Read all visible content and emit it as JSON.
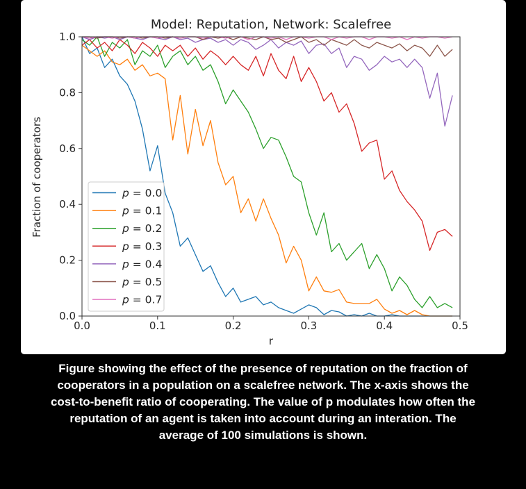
{
  "caption": {
    "lines": [
      "Figure showing the effect of the presence of reputation on the fraction of",
      "cooperators in a population on a scalefree network. The x-axis shows the",
      "cost-to-benefit ratio of cooperating. The value of p modulates how often the",
      "reputation of an agent is taken into account during an interation. The",
      "average of 100 simulations is shown."
    ]
  },
  "chart_data": {
    "type": "line",
    "title": "Model: Reputation, Network: Scalefree",
    "xlabel": "r",
    "ylabel": "Fraction of cooperators",
    "xlim": [
      0,
      0.5
    ],
    "ylim": [
      0,
      1
    ],
    "xticks": [
      0.0,
      0.1,
      0.2,
      0.3,
      0.4,
      0.5
    ],
    "yticks": [
      0.0,
      0.2,
      0.4,
      0.6,
      0.8,
      1.0
    ],
    "grid": false,
    "legend_position": "center-left",
    "x": [
      0.0,
      0.01,
      0.02,
      0.03,
      0.04,
      0.05,
      0.06,
      0.07,
      0.08,
      0.09,
      0.1,
      0.11,
      0.12,
      0.13,
      0.14,
      0.15,
      0.16,
      0.17,
      0.18,
      0.19,
      0.2,
      0.21,
      0.22,
      0.23,
      0.24,
      0.25,
      0.26,
      0.27,
      0.28,
      0.29,
      0.3,
      0.31,
      0.32,
      0.33,
      0.34,
      0.35,
      0.36,
      0.37,
      0.38,
      0.39,
      0.4,
      0.41,
      0.42,
      0.43,
      0.44,
      0.45,
      0.46,
      0.47,
      0.48,
      0.49
    ],
    "series": [
      {
        "name": "p = 0.0",
        "color": "#1f77b4",
        "values": [
          1.0,
          0.94,
          0.96,
          0.89,
          0.92,
          0.86,
          0.83,
          0.77,
          0.67,
          0.52,
          0.61,
          0.44,
          0.37,
          0.25,
          0.28,
          0.22,
          0.16,
          0.18,
          0.12,
          0.07,
          0.1,
          0.05,
          0.06,
          0.07,
          0.04,
          0.05,
          0.03,
          0.02,
          0.01,
          0.025,
          0.04,
          0.03,
          0.005,
          0.02,
          0.015,
          0.0,
          0.005,
          0.0,
          0.01,
          0.0,
          0.0,
          0.005,
          0.0,
          0.0,
          0.0,
          0.0,
          0.0,
          0.0,
          0.0,
          0.0
        ]
      },
      {
        "name": "p = 0.1",
        "color": "#ff7f0e",
        "values": [
          0.97,
          0.95,
          0.93,
          0.95,
          0.91,
          0.9,
          0.92,
          0.88,
          0.9,
          0.86,
          0.87,
          0.85,
          0.63,
          0.79,
          0.58,
          0.74,
          0.61,
          0.7,
          0.55,
          0.47,
          0.5,
          0.37,
          0.42,
          0.34,
          0.42,
          0.35,
          0.29,
          0.19,
          0.25,
          0.2,
          0.09,
          0.14,
          0.09,
          0.085,
          0.095,
          0.05,
          0.045,
          0.045,
          0.045,
          0.06,
          0.025,
          0.01,
          0.02,
          0.005,
          0.02,
          0.005,
          0.0,
          0.0,
          0.0,
          0.0
        ]
      },
      {
        "name": "p = 0.2",
        "color": "#2ca02c",
        "values": [
          0.99,
          0.97,
          1.0,
          0.93,
          0.98,
          0.96,
          0.99,
          0.9,
          0.95,
          0.93,
          0.97,
          0.89,
          0.93,
          0.95,
          0.9,
          0.93,
          0.88,
          0.9,
          0.84,
          0.76,
          0.81,
          0.77,
          0.73,
          0.67,
          0.6,
          0.64,
          0.63,
          0.57,
          0.5,
          0.48,
          0.37,
          0.29,
          0.37,
          0.23,
          0.26,
          0.2,
          0.23,
          0.26,
          0.17,
          0.22,
          0.17,
          0.09,
          0.14,
          0.11,
          0.06,
          0.03,
          0.07,
          0.03,
          0.045,
          0.03
        ]
      },
      {
        "name": "p = 0.3",
        "color": "#d62728",
        "values": [
          0.97,
          0.99,
          0.96,
          0.98,
          0.95,
          0.99,
          0.97,
          0.94,
          0.98,
          0.96,
          0.93,
          0.97,
          0.95,
          0.97,
          0.93,
          0.96,
          0.92,
          0.95,
          0.93,
          0.9,
          0.93,
          0.9,
          0.88,
          0.93,
          0.86,
          0.94,
          0.88,
          0.85,
          0.93,
          0.84,
          0.89,
          0.84,
          0.77,
          0.8,
          0.73,
          0.76,
          0.69,
          0.59,
          0.62,
          0.63,
          0.49,
          0.52,
          0.45,
          0.41,
          0.38,
          0.34,
          0.235,
          0.3,
          0.31,
          0.285
        ]
      },
      {
        "name": "p = 0.4",
        "color": "#9467bd",
        "values": [
          1.0,
          0.99,
          1.0,
          0.995,
          1.0,
          0.99,
          1.0,
          0.995,
          0.99,
          1.0,
          0.995,
          0.99,
          1.0,
          0.99,
          0.995,
          0.98,
          0.99,
          0.995,
          0.98,
          0.99,
          0.97,
          0.99,
          0.98,
          0.955,
          0.97,
          0.99,
          0.96,
          0.98,
          0.97,
          0.985,
          0.94,
          0.97,
          0.975,
          0.94,
          0.96,
          0.89,
          0.93,
          0.92,
          0.88,
          0.9,
          0.93,
          0.91,
          0.92,
          0.89,
          0.92,
          0.89,
          0.78,
          0.87,
          0.68,
          0.79
        ]
      },
      {
        "name": "p = 0.5",
        "color": "#8c564b",
        "values": [
          1.0,
          1.0,
          0.995,
          1.0,
          1.0,
          0.995,
          1.0,
          1.0,
          0.995,
          1.0,
          1.0,
          0.995,
          1.0,
          0.995,
          1.0,
          1.0,
          0.99,
          1.0,
          0.995,
          1.0,
          0.99,
          1.0,
          0.995,
          0.99,
          1.0,
          0.99,
          0.995,
          0.98,
          0.99,
          1.0,
          0.98,
          0.99,
          0.97,
          0.99,
          0.98,
          0.97,
          0.99,
          0.97,
          0.96,
          0.98,
          0.97,
          0.96,
          0.975,
          0.95,
          0.97,
          0.96,
          0.93,
          0.97,
          0.93,
          0.955
        ]
      },
      {
        "name": "p = 0.7",
        "color": "#e377c2",
        "values": [
          1.0,
          0.995,
          1.0,
          1.0,
          0.995,
          1.0,
          1.0,
          0.995,
          1.0,
          1.0,
          0.995,
          1.0,
          1.0,
          0.995,
          1.0,
          1.0,
          0.995,
          1.0,
          1.0,
          0.995,
          1.0,
          1.0,
          0.99,
          1.0,
          1.0,
          0.995,
          1.0,
          0.99,
          1.0,
          1.0,
          0.995,
          1.0,
          1.0,
          0.99,
          1.0,
          0.995,
          1.0,
          1.0,
          0.99,
          1.0,
          1.0,
          0.995,
          1.0,
          0.99,
          1.0,
          0.995,
          1.0,
          1.0,
          0.995,
          1.0
        ]
      }
    ]
  }
}
